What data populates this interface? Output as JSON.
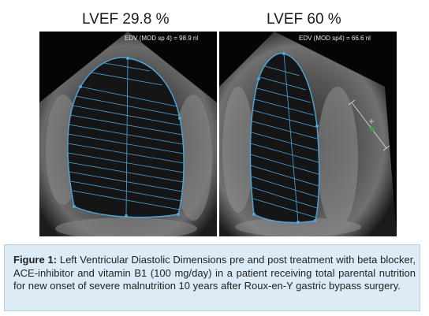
{
  "figure": {
    "panels": [
      {
        "title": "LVEF 29.8 %",
        "measurement": "EDV (MOD sp 4) = 98.9 nl"
      },
      {
        "title": "LVEF 60 %",
        "measurement": "EDV (MOD sp4) = 66.6 nl"
      }
    ],
    "caption_label": "Figure 1:",
    "caption_text": "Left Ventricular Diastolic Dimensions pre and post treatment with beta blocker, ACE-inhibitor and vitamin B1 (100 mg/day) in a patient receiving total parental nutrition for new onset of severe malnutrition 10 years after Roux-en-Y gastric bypass surgery."
  },
  "colors": {
    "contour": "#4ea6dc",
    "caption_background": "#dcebf5",
    "marker": "#3aa04a"
  }
}
